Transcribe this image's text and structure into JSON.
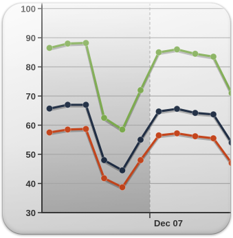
{
  "chart_data": {
    "type": "line",
    "ylim": [
      30,
      100
    ],
    "yticks": [
      30,
      40,
      50,
      60,
      70,
      80,
      90,
      100
    ],
    "x_tick_labels": [
      "Dec 07"
    ],
    "grid": true,
    "series": [
      {
        "color": "#79a84a",
        "values": [
          86.5,
          88,
          88.2,
          62.5,
          58.5,
          72,
          85,
          86,
          84.5,
          83.5,
          71
        ]
      },
      {
        "color": "#1f2d43",
        "values": [
          65.7,
          67,
          67,
          48,
          44.5,
          55,
          64.7,
          65.6,
          64.2,
          63.7,
          54
        ]
      },
      {
        "color": "#c4451c",
        "values": [
          57.5,
          58.5,
          58.7,
          41.8,
          38.7,
          48,
          56.5,
          57.2,
          56.2,
          55.5,
          47
        ]
      }
    ]
  }
}
